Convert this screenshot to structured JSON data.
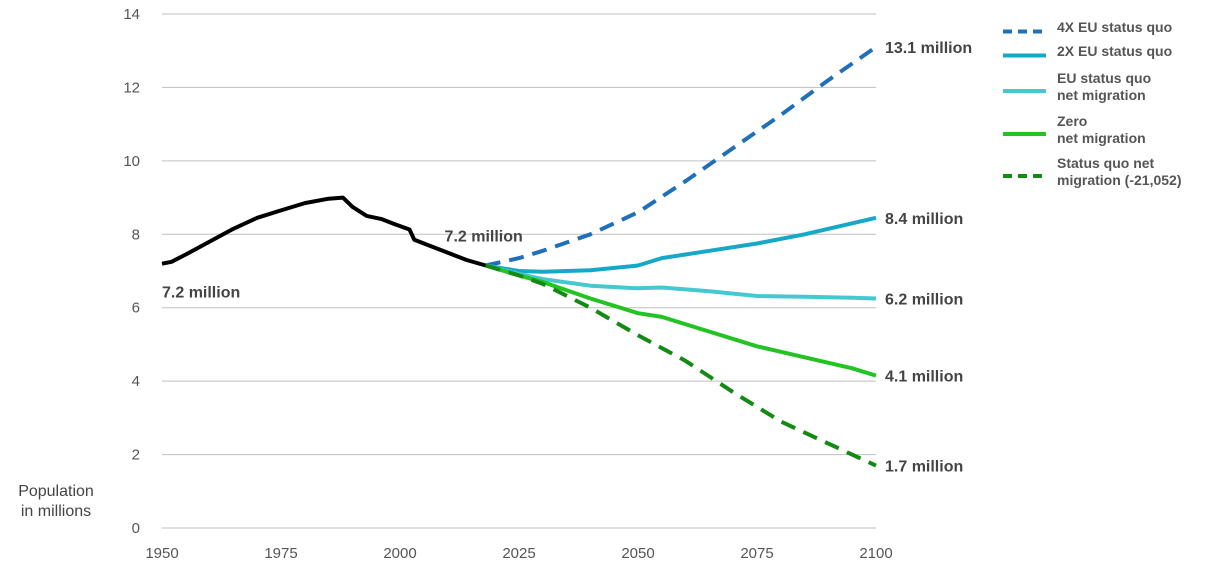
{
  "chart_data": {
    "type": "line",
    "ylabel": "Population\nin millions",
    "xlim": [
      1950,
      2100
    ],
    "ylim": [
      0,
      14
    ],
    "x_ticks": [
      1950,
      1975,
      2000,
      2025,
      2050,
      2075,
      2100
    ],
    "y_ticks": [
      0,
      2,
      4,
      6,
      8,
      10,
      12,
      14
    ],
    "grid": true,
    "legend_position": "top-right",
    "historical": {
      "color": "#000000",
      "points": [
        [
          1950,
          7.2
        ],
        [
          1952,
          7.25
        ],
        [
          1955,
          7.45
        ],
        [
          1960,
          7.8
        ],
        [
          1965,
          8.15
        ],
        [
          1970,
          8.45
        ],
        [
          1975,
          8.65
        ],
        [
          1980,
          8.85
        ],
        [
          1985,
          8.97
        ],
        [
          1988,
          9.0
        ],
        [
          1990,
          8.75
        ],
        [
          1993,
          8.5
        ],
        [
          1996,
          8.42
        ],
        [
          1999,
          8.27
        ],
        [
          2002,
          8.13
        ],
        [
          2003,
          7.85
        ],
        [
          2007,
          7.65
        ],
        [
          2011,
          7.45
        ],
        [
          2014,
          7.3
        ],
        [
          2018,
          7.15
        ]
      ]
    },
    "annotations": [
      {
        "text": "7.2 million",
        "x": 1950,
        "y": 7.2
      },
      {
        "text": "7.2 million",
        "x": 2018,
        "y": 7.15
      }
    ],
    "series": [
      {
        "name": "4X EU status quo",
        "color": "#1f70b8",
        "dashed": true,
        "end_label": "13.1 million",
        "points": [
          [
            2018,
            7.15
          ],
          [
            2025,
            7.35
          ],
          [
            2030,
            7.55
          ],
          [
            2040,
            8.0
          ],
          [
            2050,
            8.6
          ],
          [
            2060,
            9.45
          ],
          [
            2070,
            10.35
          ],
          [
            2080,
            11.25
          ],
          [
            2090,
            12.2
          ],
          [
            2100,
            13.1
          ]
        ]
      },
      {
        "name": "2X EU status quo",
        "color": "#17a8c8",
        "dashed": false,
        "end_label": "8.4 million",
        "points": [
          [
            2018,
            7.15
          ],
          [
            2025,
            7.0
          ],
          [
            2030,
            6.98
          ],
          [
            2040,
            7.02
          ],
          [
            2050,
            7.15
          ],
          [
            2055,
            7.35
          ],
          [
            2065,
            7.55
          ],
          [
            2075,
            7.75
          ],
          [
            2085,
            8.0
          ],
          [
            2095,
            8.3
          ],
          [
            2100,
            8.45
          ]
        ]
      },
      {
        "name": "EU status quo\nnet migration",
        "color": "#45c8d0",
        "dashed": false,
        "end_label": "6.2 million",
        "points": [
          [
            2018,
            7.15
          ],
          [
            2025,
            6.92
          ],
          [
            2030,
            6.78
          ],
          [
            2040,
            6.6
          ],
          [
            2050,
            6.53
          ],
          [
            2055,
            6.55
          ],
          [
            2065,
            6.45
          ],
          [
            2075,
            6.32
          ],
          [
            2085,
            6.3
          ],
          [
            2095,
            6.27
          ],
          [
            2100,
            6.25
          ]
        ]
      },
      {
        "name": "Zero\nnet migration",
        "color": "#22c322",
        "dashed": false,
        "end_label": "4.1 million",
        "points": [
          [
            2018,
            7.15
          ],
          [
            2025,
            6.88
          ],
          [
            2030,
            6.7
          ],
          [
            2040,
            6.25
          ],
          [
            2050,
            5.85
          ],
          [
            2055,
            5.75
          ],
          [
            2065,
            5.35
          ],
          [
            2075,
            4.95
          ],
          [
            2085,
            4.65
          ],
          [
            2095,
            4.35
          ],
          [
            2100,
            4.15
          ]
        ]
      },
      {
        "name": "Status quo net\nmigration (-21,052)",
        "color": "#138a13",
        "dashed": true,
        "end_label": "1.7 million",
        "points": [
          [
            2018,
            7.15
          ],
          [
            2025,
            6.88
          ],
          [
            2030,
            6.65
          ],
          [
            2040,
            6.0
          ],
          [
            2050,
            5.25
          ],
          [
            2060,
            4.55
          ],
          [
            2070,
            3.7
          ],
          [
            2080,
            2.9
          ],
          [
            2090,
            2.3
          ],
          [
            2100,
            1.7
          ]
        ]
      }
    ]
  }
}
